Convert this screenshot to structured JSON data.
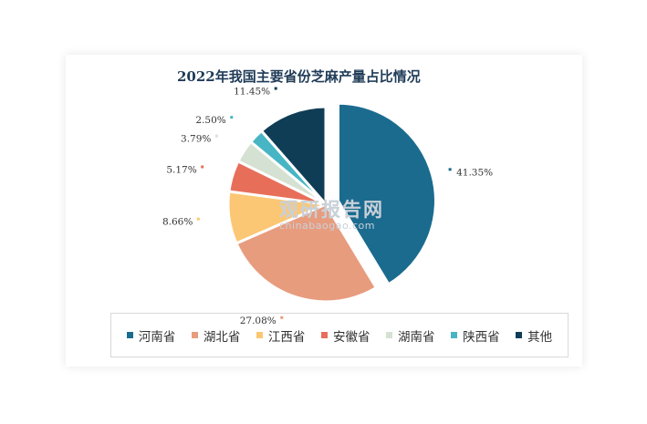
{
  "chart_data": {
    "type": "pie",
    "title": "2022年我国主要省份芝麻产量占比情况",
    "series": [
      {
        "name": "河南省",
        "value": 41.35,
        "label": "41.35%",
        "color": "#1b6b8f",
        "exploded": true
      },
      {
        "name": "湖北省",
        "value": 27.08,
        "label": "27.08%",
        "color": "#e89c7e",
        "exploded": false
      },
      {
        "name": "江西省",
        "value": 8.66,
        "label": "8.66%",
        "color": "#fcc774",
        "exploded": false
      },
      {
        "name": "安徽省",
        "value": 5.17,
        "label": "5.17%",
        "color": "#e76f5a",
        "exploded": false
      },
      {
        "name": "湖南省",
        "value": 3.79,
        "label": "3.79%",
        "color": "#d5e1d2",
        "exploded": false
      },
      {
        "name": "陕西省",
        "value": 2.5,
        "label": "2.50%",
        "color": "#47b5c4",
        "exploded": false
      },
      {
        "name": "其他",
        "value": 11.45,
        "label": "11.45%",
        "color": "#0f3d56",
        "exploded": false
      }
    ],
    "legend_position": "bottom"
  },
  "watermark": {
    "main": "观研报告网",
    "sub": "chinabaogao.com"
  }
}
